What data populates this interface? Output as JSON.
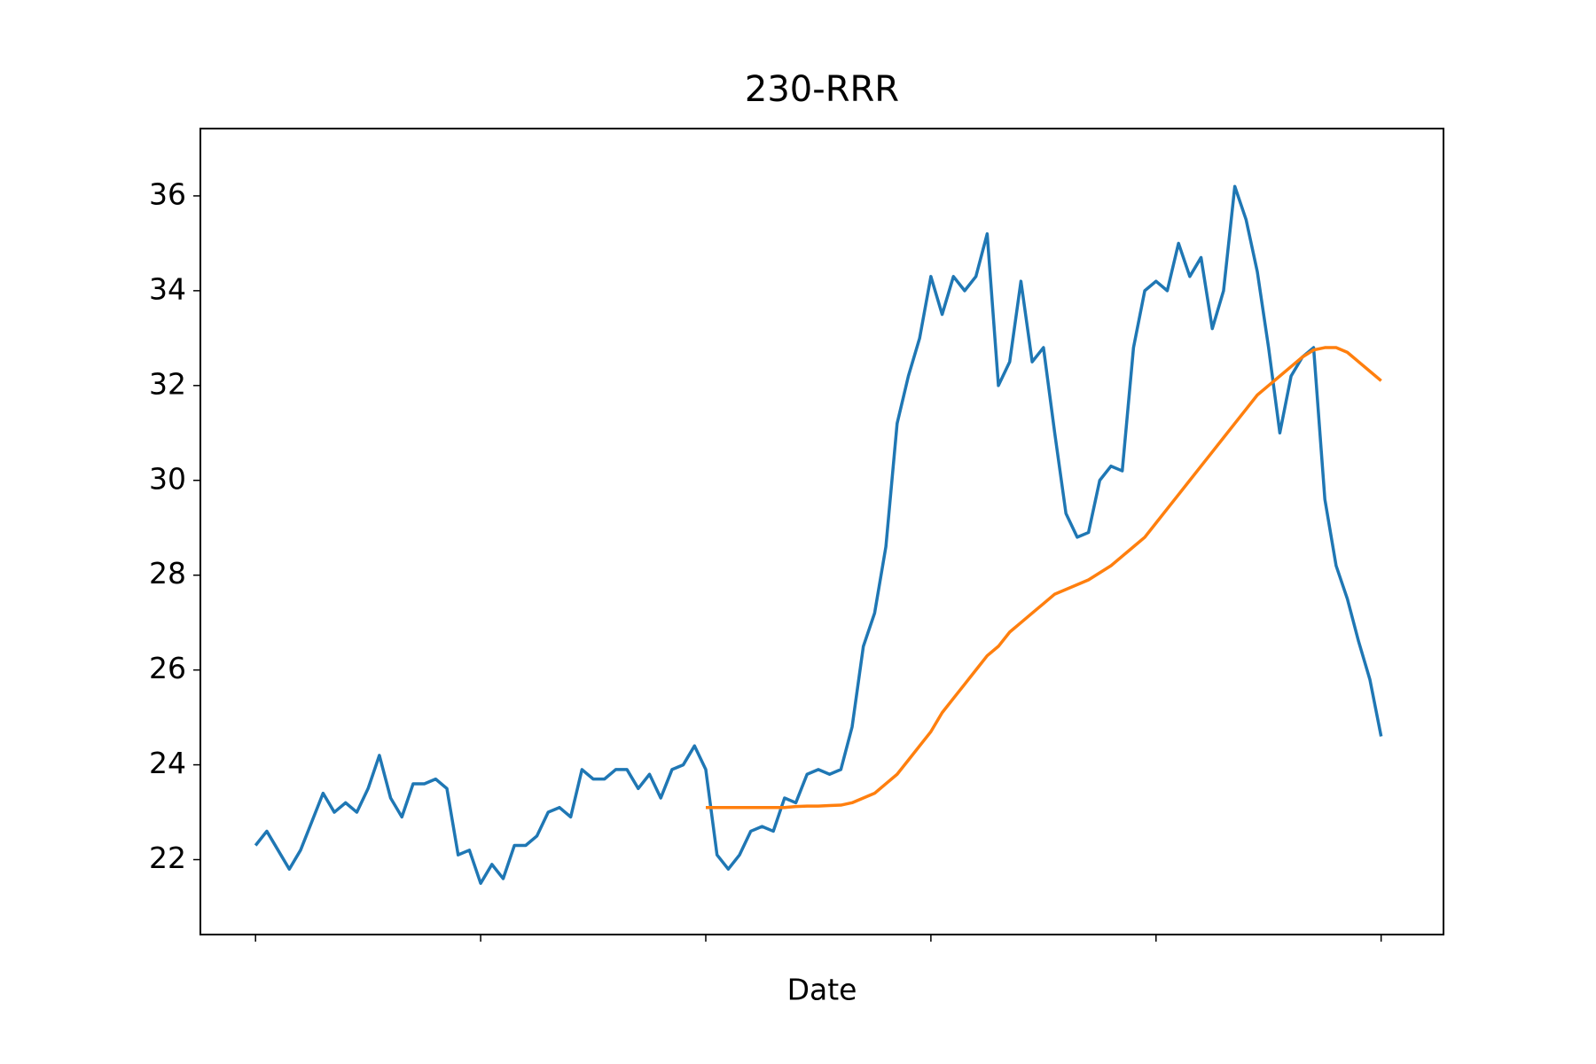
{
  "chart_data": {
    "type": "line",
    "title": "230-RRR",
    "x_label": "Date",
    "x": [
      0,
      5,
      10,
      15,
      20,
      25,
      30,
      35,
      40,
      45,
      50,
      55,
      60,
      65,
      70,
      75,
      80,
      85,
      90,
      95,
      100,
      105,
      110,
      115,
      120,
      125,
      130,
      135,
      140,
      145,
      150,
      155,
      160,
      165,
      170,
      175,
      180,
      185,
      190,
      195,
      200,
      205,
      210,
      215,
      220,
      225,
      230,
      235,
      240,
      245,
      250,
      255,
      260,
      265,
      270,
      275,
      280,
      285,
      290,
      295,
      300,
      305,
      310,
      315,
      320,
      325,
      330,
      335,
      340,
      345,
      350,
      355,
      360,
      365,
      370,
      375,
      380,
      385,
      390,
      395,
      400,
      405,
      410,
      415,
      420,
      425,
      430,
      435,
      440,
      445,
      450,
      455,
      460,
      465,
      470,
      475,
      480,
      485,
      490,
      495,
      500
    ],
    "series": [
      {
        "color": "#1f77b4",
        "values": [
          22.3,
          22.6,
          22.2,
          21.8,
          22.2,
          22.8,
          23.4,
          23.0,
          23.2,
          23.0,
          23.5,
          24.2,
          23.3,
          22.9,
          23.6,
          23.6,
          23.7,
          23.5,
          22.1,
          22.2,
          21.5,
          21.9,
          21.6,
          22.3,
          22.3,
          22.5,
          23.0,
          23.1,
          22.9,
          23.9,
          23.7,
          23.7,
          23.9,
          23.9,
          23.5,
          23.8,
          23.3,
          23.9,
          24.0,
          24.4,
          23.9,
          22.1,
          21.8,
          22.1,
          22.6,
          22.7,
          22.6,
          23.3,
          23.2,
          23.8,
          23.9,
          23.8,
          23.9,
          24.8,
          26.5,
          27.2,
          28.6,
          31.2,
          32.2,
          33.0,
          34.3,
          33.5,
          34.3,
          34.0,
          34.3,
          35.2,
          32.0,
          32.5,
          34.2,
          32.5,
          32.8,
          31.0,
          29.3,
          28.8,
          28.9,
          30.0,
          30.3,
          30.2,
          32.8,
          34.0,
          34.2,
          34.0,
          35.0,
          34.3,
          34.7,
          33.2,
          34.0,
          36.2,
          35.5,
          34.4,
          32.8,
          31.0,
          32.2,
          32.6,
          32.8,
          29.6,
          28.2,
          27.5,
          26.6,
          25.8,
          24.6
        ]
      },
      {
        "color": "#ff7f0e",
        "values": [
          null,
          null,
          null,
          null,
          null,
          null,
          null,
          null,
          null,
          null,
          null,
          null,
          null,
          null,
          null,
          null,
          null,
          null,
          null,
          null,
          null,
          null,
          null,
          null,
          null,
          null,
          null,
          null,
          null,
          null,
          null,
          null,
          null,
          null,
          null,
          null,
          null,
          null,
          null,
          null,
          23.1,
          23.1,
          23.1,
          23.1,
          23.1,
          23.1,
          23.1,
          23.1,
          23.12,
          23.13,
          23.13,
          23.14,
          23.15,
          23.2,
          23.3,
          23.4,
          23.6,
          23.8,
          24.1,
          24.4,
          24.7,
          25.1,
          25.4,
          25.7,
          26.0,
          26.3,
          26.5,
          26.8,
          27.0,
          27.2,
          27.4,
          27.6,
          27.7,
          27.8,
          27.9,
          28.05,
          28.2,
          28.4,
          28.6,
          28.8,
          29.1,
          29.4,
          29.7,
          30.0,
          30.3,
          30.6,
          30.9,
          31.2,
          31.5,
          31.8,
          32.0,
          32.2,
          32.4,
          32.6,
          32.75,
          32.8,
          32.8,
          32.7,
          32.5,
          32.3,
          32.1
        ]
      }
    ],
    "xlim": [
      -24.5,
      527.7
    ],
    "xticks": [
      0,
      100,
      200,
      300,
      400,
      500
    ],
    "ylim": [
      20.42,
      37.42
    ],
    "yticks": [
      22,
      24,
      26,
      28,
      30,
      32,
      34,
      36
    ]
  }
}
